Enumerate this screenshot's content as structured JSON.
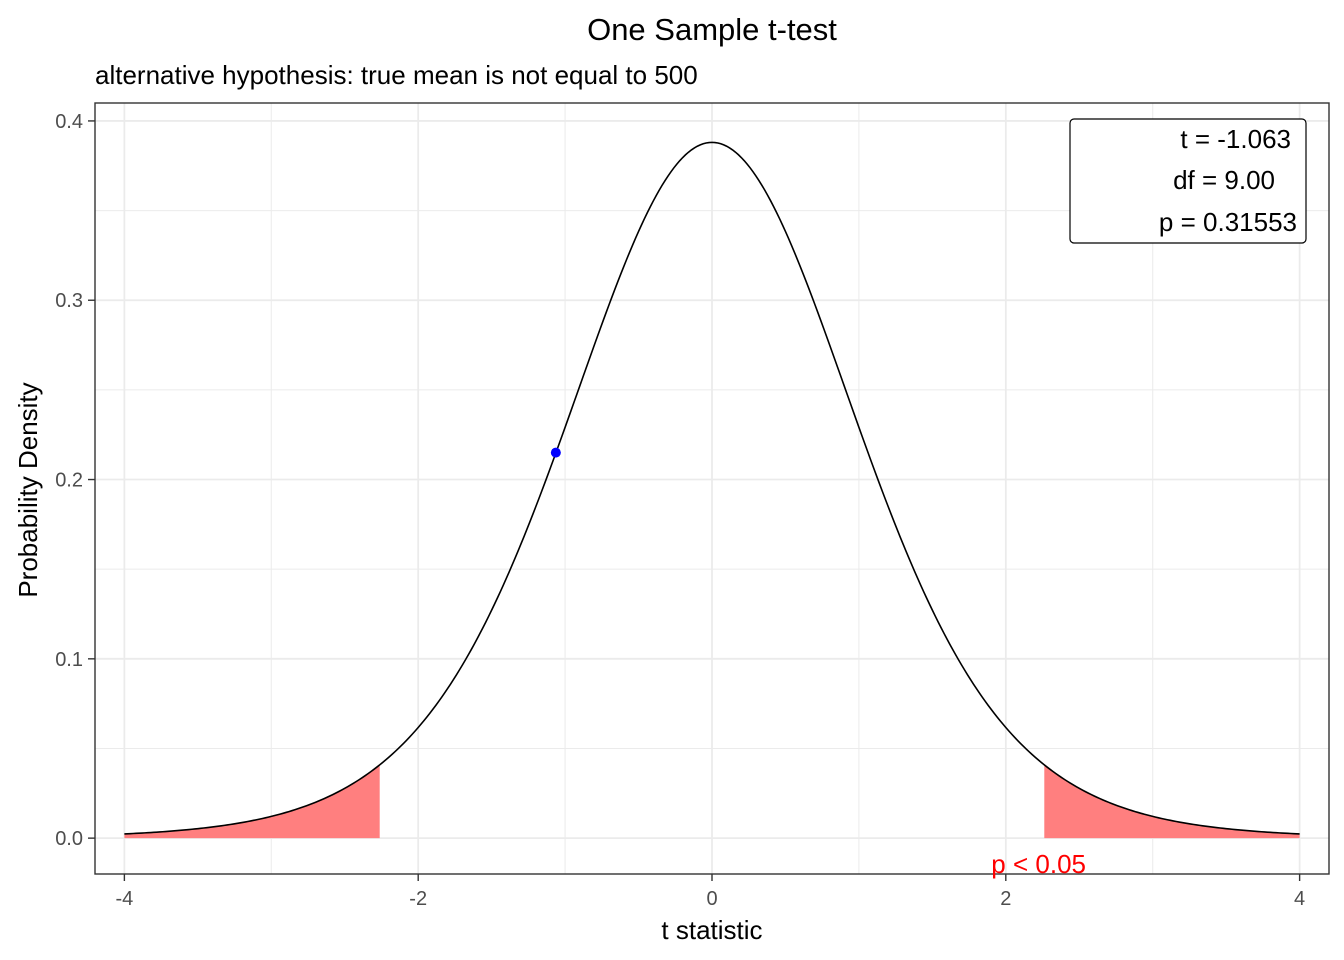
{
  "chart_data": {
    "type": "area",
    "title": "One Sample t-test",
    "subtitle": "alternative hypothesis: true mean is not equal to 500",
    "xlabel": "t statistic",
    "ylabel": "Probability Density",
    "xlim": [
      -4.2,
      4.2
    ],
    "ylim": [
      -0.02,
      0.41
    ],
    "x_ticks": [
      -4,
      -2,
      0,
      2,
      4
    ],
    "x_tick_labels": [
      "-4",
      "-2",
      "0",
      "2",
      "4"
    ],
    "y_ticks": [
      0.0,
      0.1,
      0.2,
      0.3,
      0.4
    ],
    "y_tick_labels": [
      "0.0",
      "0.1",
      "0.2",
      "0.3",
      "0.4"
    ],
    "grid": true,
    "distribution": {
      "name": "t",
      "df": 9,
      "x_range": [
        -4,
        4
      ]
    },
    "rejection_regions": {
      "left": [
        -4,
        -2.262
      ],
      "right": [
        2.262,
        4
      ],
      "color": "#ff7f7f"
    },
    "observed_point": {
      "t": -1.063,
      "density": 0.215,
      "color": "#0000ff"
    },
    "stats_box": {
      "position": "top-right",
      "lines": [
        "t = -1.063",
        "df = 9.00",
        "p = 0.31553"
      ]
    },
    "significance_label": {
      "text": "p < 0.05",
      "x": 2.262,
      "y": -0.015,
      "color": "#ff0000"
    },
    "colors": {
      "curve": "#000000",
      "grid": "#ebebeb",
      "panel_border": "#333333"
    }
  }
}
